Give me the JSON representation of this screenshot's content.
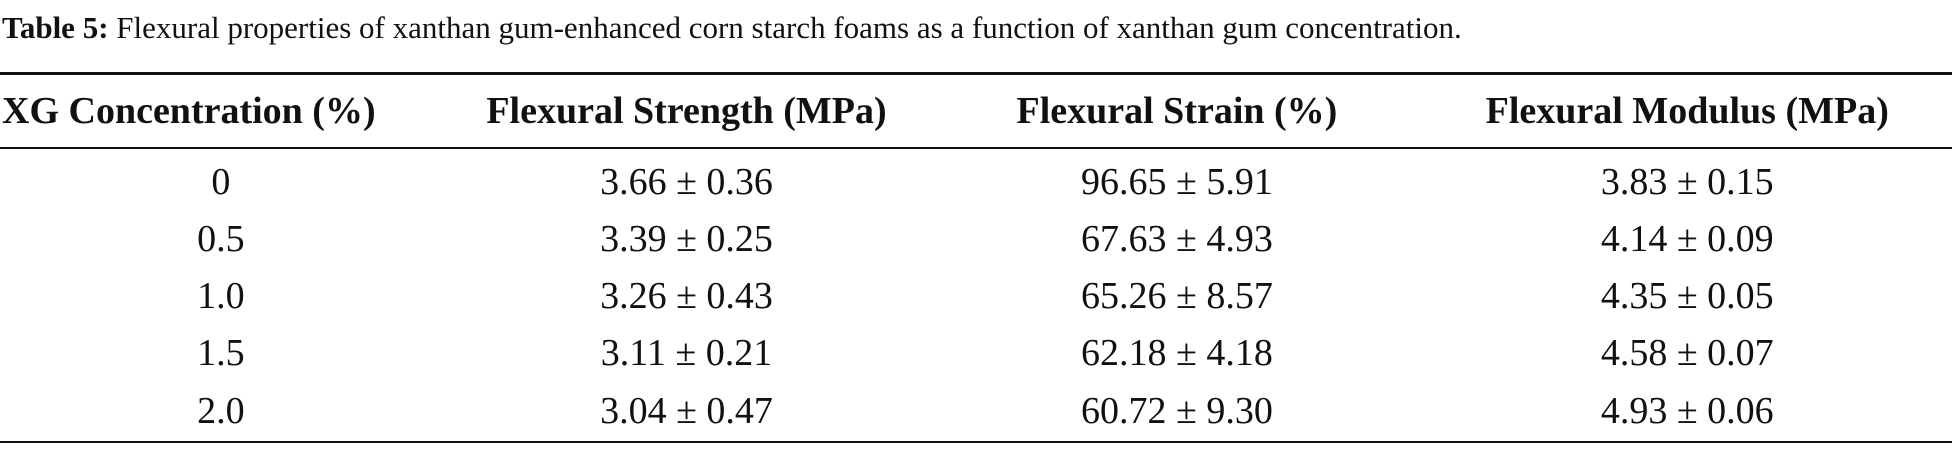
{
  "caption": {
    "label": "Table 5:",
    "text": "Flexural properties of xanthan gum-enhanced corn starch foams as a function of xanthan gum concentration."
  },
  "table": {
    "headers": [
      "XG Concentration (%)",
      "Flexural Strength (MPa)",
      "Flexural Strain (%)",
      "Flexural Modulus (MPa)"
    ],
    "rows": [
      [
        "0",
        "3.66 ± 0.36",
        "96.65 ± 5.91",
        "3.83 ± 0.15"
      ],
      [
        "0.5",
        "3.39 ± 0.25",
        "67.63 ± 4.93",
        "4.14 ± 0.09"
      ],
      [
        "1.0",
        "3.26 ± 0.43",
        "65.26 ± 8.57",
        "4.35 ± 0.05"
      ],
      [
        "1.5",
        "3.11 ± 0.21",
        "62.18 ± 4.18",
        "4.58 ± 0.07"
      ],
      [
        "2.0",
        "3.04 ± 0.47",
        "60.72 ± 9.30",
        "4.93 ± 0.06"
      ]
    ]
  }
}
